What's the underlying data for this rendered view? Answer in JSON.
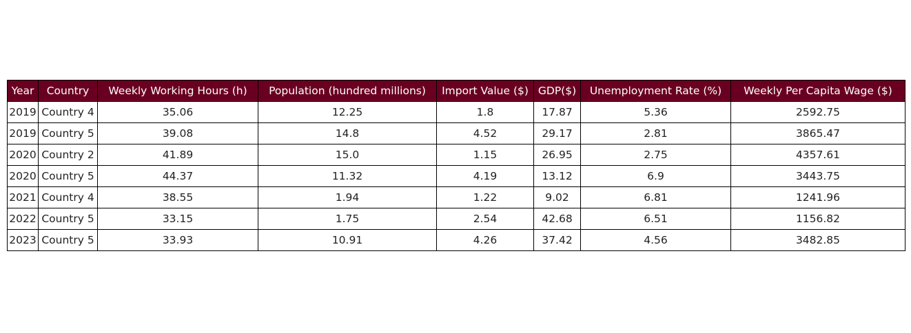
{
  "colors": {
    "header_bg": "#6a0021",
    "header_text": "#ffffff",
    "cell_text": "#222222",
    "border": "#000000"
  },
  "chart_data": {
    "type": "table",
    "columns": [
      "Year",
      "Country",
      "Weekly Working Hours (h)",
      "Population (hundred millions)",
      "Import Value ($)",
      "GDP($)",
      "Unemployment Rate (%)",
      "Weekly Per Capita Wage ($)"
    ],
    "rows": [
      [
        "2019",
        "Country 4",
        "35.06",
        "12.25",
        "1.8",
        "17.87",
        "5.36",
        "2592.75"
      ],
      [
        "2019",
        "Country 5",
        "39.08",
        "14.8",
        "4.52",
        "29.17",
        "2.81",
        "3865.47"
      ],
      [
        "2020",
        "Country 2",
        "41.89",
        "15.0",
        "1.15",
        "26.95",
        "2.75",
        "4357.61"
      ],
      [
        "2020",
        "Country 5",
        "44.37",
        "11.32",
        "4.19",
        "13.12",
        "6.9",
        "3443.75"
      ],
      [
        "2021",
        "Country 4",
        "38.55",
        "1.94",
        "1.22",
        "9.02",
        "6.81",
        "1241.96"
      ],
      [
        "2022",
        "Country 5",
        "33.15",
        "1.75",
        "2.54",
        "42.68",
        "6.51",
        "1156.82"
      ],
      [
        "2023",
        "Country 5",
        "33.93",
        "10.91",
        "4.26",
        "37.42",
        "4.56",
        "3482.85"
      ]
    ]
  }
}
